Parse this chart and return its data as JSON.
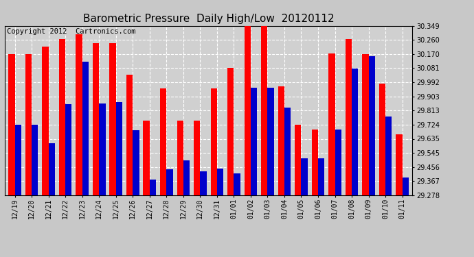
{
  "title": "Barometric Pressure  Daily High/Low  20120112",
  "copyright": "Copyright 2012  Cartronics.com",
  "categories": [
    "12/19",
    "12/20",
    "12/21",
    "12/22",
    "12/23",
    "12/24",
    "12/25",
    "12/26",
    "12/27",
    "12/28",
    "12/29",
    "12/30",
    "12/31",
    "01/01",
    "01/02",
    "01/03",
    "01/04",
    "01/05",
    "01/06",
    "01/07",
    "01/08",
    "01/09",
    "01/10",
    "01/11"
  ],
  "high_values": [
    30.17,
    30.17,
    30.215,
    30.265,
    30.295,
    30.238,
    30.24,
    30.038,
    29.748,
    29.955,
    29.748,
    29.748,
    29.955,
    30.082,
    30.345,
    30.349,
    29.965,
    29.725,
    29.695,
    30.175,
    30.265,
    30.17,
    29.985,
    29.665
  ],
  "low_values": [
    29.724,
    29.722,
    29.608,
    29.855,
    30.122,
    29.857,
    29.868,
    29.688,
    29.378,
    29.442,
    29.498,
    29.428,
    29.448,
    29.415,
    29.958,
    29.958,
    29.83,
    29.512,
    29.512,
    29.692,
    30.08,
    30.155,
    29.775,
    29.392
  ],
  "bar_color_high": "#ff0000",
  "bar_color_low": "#0000cc",
  "yticks": [
    29.278,
    29.367,
    29.456,
    29.545,
    29.635,
    29.724,
    29.813,
    29.903,
    29.992,
    30.081,
    30.17,
    30.26,
    30.349
  ],
  "ymin": 29.278,
  "ymax": 30.349,
  "fig_facecolor": "#c8c8c8",
  "plot_facecolor": "#d0d0d0",
  "grid_color": "#ffffff",
  "title_fontsize": 11,
  "tick_fontsize": 7,
  "copyright_fontsize": 7.5
}
